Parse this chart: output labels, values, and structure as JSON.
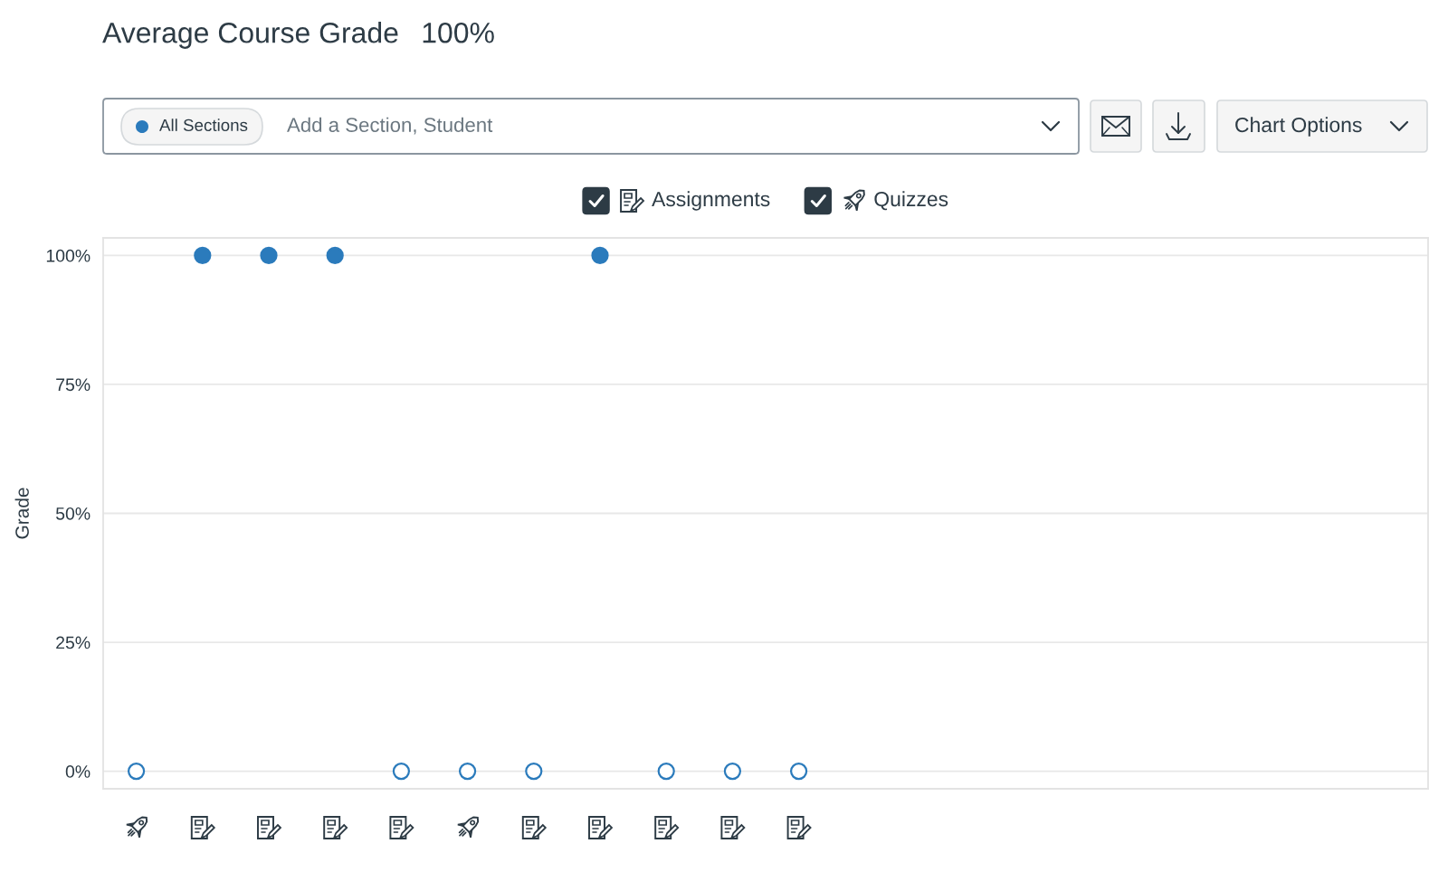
{
  "chart_data": {
    "type": "scatter",
    "title": "Average Course Grade",
    "subtitle": "100%",
    "ylabel": "Grade",
    "categories": [
      null,
      null,
      null,
      null,
      null,
      null,
      null,
      null,
      null,
      null,
      null,
      null,
      null,
      null,
      null,
      null,
      null,
      null,
      null,
      null
    ],
    "series": [
      {
        "color": "#2b7bbc",
        "colors": [
          null,
          "#2b7bbc",
          "#2b7bbc",
          "#2b7bbc",
          "#ffffff",
          null,
          "#ffffff",
          "#2b7bbc",
          "#ffffff",
          "#ffffff",
          "#ffffff",
          null,
          null,
          null,
          null,
          null,
          null,
          null,
          null,
          null
        ],
        "values": [
          null,
          100,
          100,
          100,
          0,
          null,
          0,
          100,
          0,
          0,
          0,
          null,
          null,
          null,
          null,
          null,
          null,
          null,
          null,
          null
        ]
      },
      {
        "color": "#2b7bbc",
        "colors": [
          "#ffffff",
          null,
          null,
          null,
          null,
          "#ffffff",
          null,
          null,
          null,
          null,
          null,
          null,
          null,
          null,
          null,
          null,
          null,
          null,
          null,
          null
        ],
        "values": [
          0,
          null,
          null,
          null,
          null,
          0,
          null,
          null,
          null,
          null,
          null,
          null,
          null,
          null,
          null,
          null,
          null,
          null,
          null,
          null
        ]
      }
    ],
    "ylim": [
      -3.4,
      103.4
    ],
    "yticks": [
      {
        "value": 0,
        "label": "0%"
      },
      {
        "value": 25,
        "label": "25%"
      },
      {
        "value": 50,
        "label": "50%"
      },
      {
        "value": 75,
        "label": "75%"
      },
      {
        "value": 100,
        "label": "100%"
      }
    ],
    "grid": "y",
    "marker": "circle",
    "annotations": [
      "All Sections",
      "Add a Section, Student",
      "Chart Options",
      "Assignments",
      "Quizzes"
    ]
  }
}
